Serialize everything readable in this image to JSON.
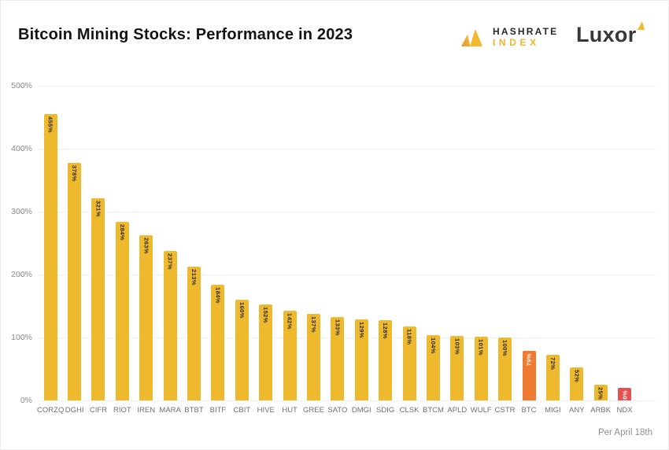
{
  "header": {
    "title": "Bitcoin Mining Stocks: Performance in 2023"
  },
  "logos": {
    "hashrate_index": {
      "line1": "HASHRATE",
      "line2": "INDEX",
      "icon": "hashrate-twin-triangles",
      "accent": "#f0b32e"
    },
    "luxor": {
      "word": "Luxor",
      "icon": "luxor-triangle",
      "accent": "#f3ba2f"
    }
  },
  "footer": {
    "note": "Per April 18th"
  },
  "colors": {
    "bar_default": "#efb92e",
    "bar_btc": "#ee7b2f",
    "bar_ndx": "#e65050",
    "label_on_yellow": "#2a2a2a",
    "label_on_accent": "#ffffff",
    "gridline": "#f0f0ef",
    "axis_text": "#8a8a8a"
  },
  "chart_data": {
    "type": "bar",
    "title": "Bitcoin Mining Stocks: Performance in 2023",
    "xlabel": "",
    "ylabel": "",
    "ylim": [
      0,
      500
    ],
    "yticks": [
      0,
      100,
      200,
      300,
      400,
      500
    ],
    "ytick_labels": [
      "0%",
      "100%",
      "200%",
      "300%",
      "400%",
      "500%"
    ],
    "grid": "horizontal",
    "legend": "none",
    "value_label_format": "percent",
    "categories": [
      "CORZQ",
      "DGHI",
      "CIFR",
      "RIOT",
      "IREN",
      "MARA",
      "BTBT",
      "BITF",
      "CBIT",
      "HIVE",
      "HUT",
      "GREE",
      "SATO",
      "DMGI",
      "SDIG",
      "CLSK",
      "BTCM",
      "APLD",
      "WULF",
      "CSTR",
      "BTC",
      "MIGI",
      "ANY",
      "ARBK",
      "NDX"
    ],
    "values": [
      455,
      378,
      321,
      284,
      263,
      237,
      213,
      184,
      160,
      152,
      142,
      137,
      133,
      129,
      128,
      118,
      104,
      103,
      101,
      100,
      79,
      72,
      52,
      25,
      20
    ],
    "value_labels": [
      "455%",
      "378%",
      "321%",
      "284%",
      "263%",
      "237%",
      "213%",
      "184%",
      "160%",
      "152%",
      "142%",
      "137%",
      "133%",
      "129%",
      "128%",
      "118%",
      "104%",
      "103%",
      "101%",
      "100%",
      "79%",
      "72%",
      "52%",
      "25%",
      "20%"
    ],
    "highlighted_bars": {
      "BTC": "orange",
      "NDX": "red"
    }
  }
}
